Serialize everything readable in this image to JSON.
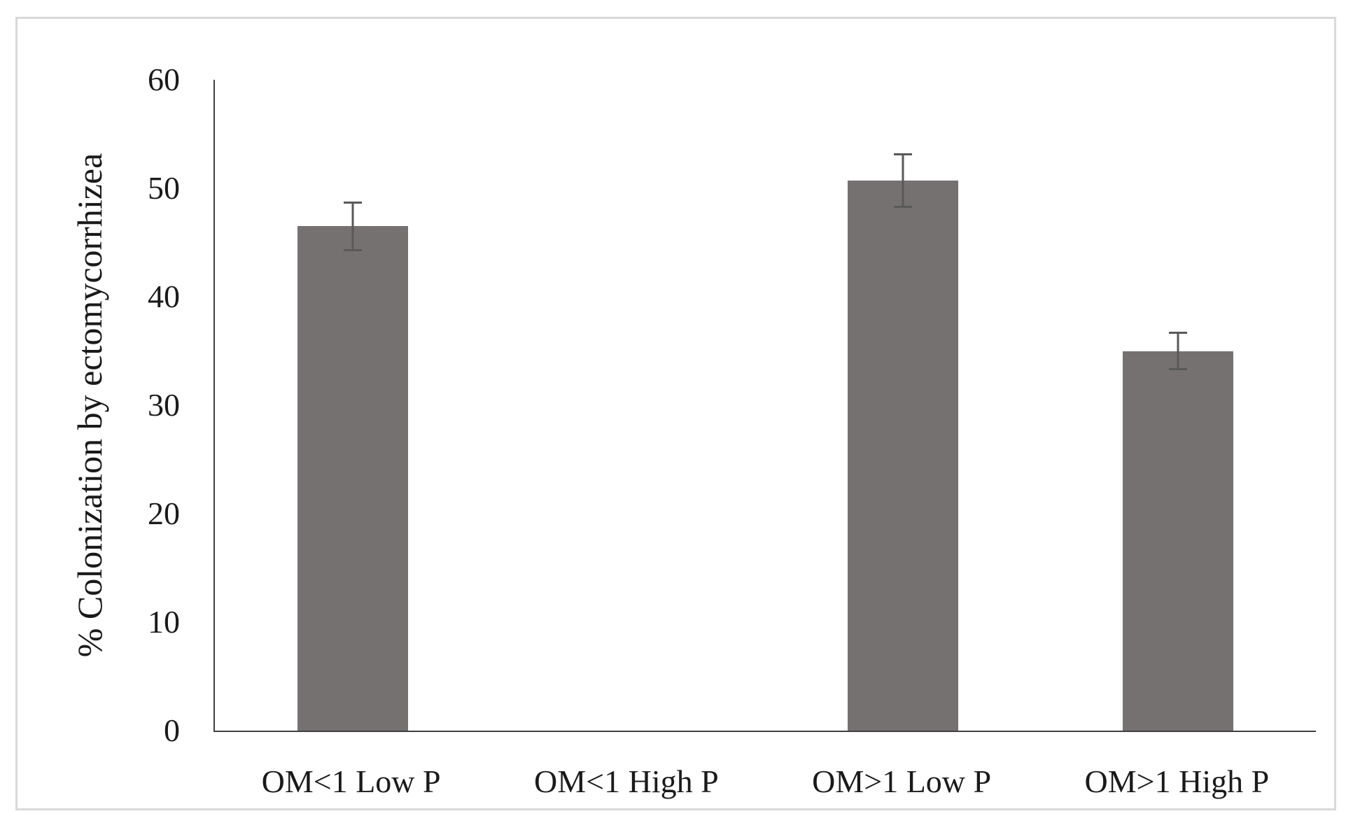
{
  "figure": {
    "background": "#ffffff",
    "frame_color": "#d9d9d9"
  },
  "chart_data": {
    "type": "bar",
    "categories": [
      "OM<1 Low P",
      "OM<1 High P",
      "OM>1 Low P",
      "OM>1 High P"
    ],
    "values": [
      46.5,
      0,
      50.7,
      35
    ],
    "error_bars": [
      2.3,
      0,
      2.5,
      1.8
    ],
    "title": "",
    "xlabel": "",
    "ylabel": "% Colonization by ectomycorrhizea",
    "ylim": [
      0,
      60
    ],
    "ytick_interval": 10,
    "ytick_labels": [
      "0",
      "10",
      "20",
      "30",
      "40",
      "50",
      "60"
    ],
    "grid": false,
    "legend": false,
    "bar_color": "#767171",
    "axis_color": "#404040",
    "error_bar_color": "#595959",
    "text_color": "#1a1a1a"
  }
}
